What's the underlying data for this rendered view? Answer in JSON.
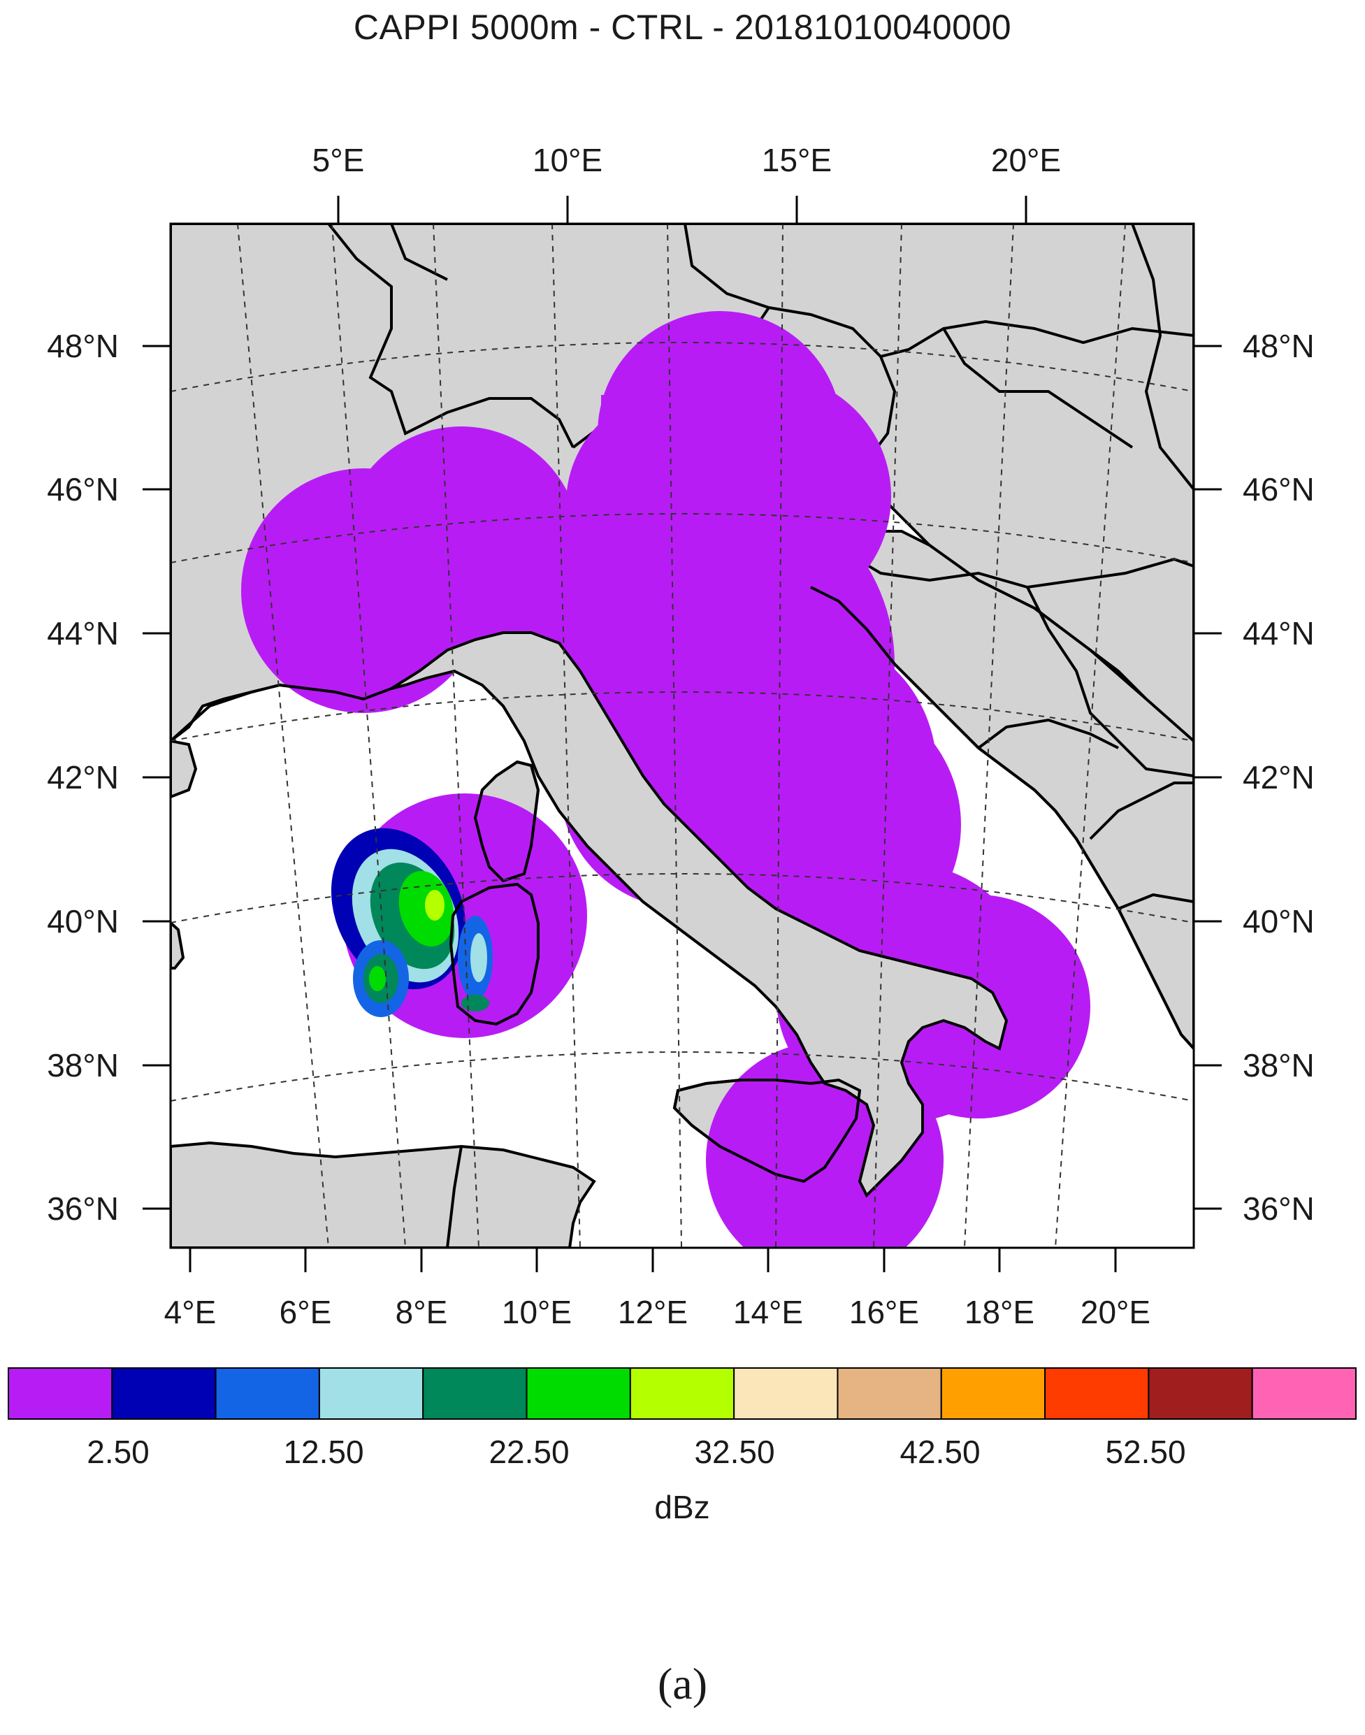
{
  "title": "CAPPI 5000m - CTRL - 20181010040000",
  "figure_label": "(a)",
  "map": {
    "top_lon_labels": [
      "5°E",
      "10°E",
      "15°E",
      "20°E"
    ],
    "bottom_lon_labels": [
      "4°E",
      "6°E",
      "8°E",
      "10°E",
      "12°E",
      "14°E",
      "16°E",
      "18°E",
      "20°E"
    ],
    "lat_labels": [
      "48°N",
      "46°N",
      "44°N",
      "42°N",
      "40°N",
      "38°N",
      "36°N"
    ],
    "land_color": "#d3d3d3",
    "sea_color": "#ffffff",
    "coverage_color": "#b81cf5"
  },
  "colorbar": {
    "unit": "dBz",
    "tick_labels": [
      "2.50",
      "12.50",
      "22.50",
      "32.50",
      "42.50",
      "52.50"
    ],
    "colors": [
      "#b81cf5",
      "#0000b4",
      "#1464e6",
      "#a0e0e6",
      "#00875a",
      "#00dc00",
      "#b4ff00",
      "#fae6b9",
      "#e6b482",
      "#ffa000",
      "#ff3c00",
      "#a01e1e",
      "#ff64b4"
    ]
  }
}
